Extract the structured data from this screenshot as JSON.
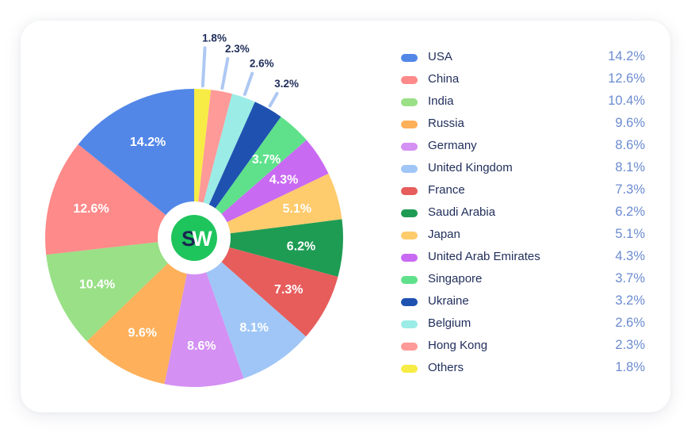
{
  "chart_data": {
    "type": "pie",
    "title": "",
    "start_angle_deg": -90,
    "direction": "clockwise",
    "center_logo": {
      "left_letter": "S",
      "right_letter": "W",
      "circle_color": "#1ec45c",
      "left_color": "#1a2550",
      "right_color": "#ffffff"
    },
    "slices": [
      {
        "label": "Others",
        "value": 1.8,
        "display": "1.8%",
        "color": "#f7ec45",
        "label_position": "outside"
      },
      {
        "label": "Hong Kong",
        "value": 2.3,
        "display": "2.3%",
        "color": "#fe9a98",
        "label_position": "outside"
      },
      {
        "label": "Belgium",
        "value": 2.6,
        "display": "2.6%",
        "color": "#9bece6",
        "label_position": "outside"
      },
      {
        "label": "Ukraine",
        "value": 3.2,
        "display": "3.2%",
        "color": "#1f52b0",
        "label_position": "outside"
      },
      {
        "label": "Singapore",
        "value": 3.7,
        "display": "3.7%",
        "color": "#5fe18b",
        "label_position": "inside"
      },
      {
        "label": "United Arab Emirates",
        "value": 4.3,
        "display": "4.3%",
        "color": "#c96af3",
        "label_position": "inside"
      },
      {
        "label": "Japan",
        "value": 5.1,
        "display": "5.1%",
        "color": "#fecb6d",
        "label_position": "inside"
      },
      {
        "label": "Saudi Arabia",
        "value": 6.2,
        "display": "6.2%",
        "color": "#1e9c54",
        "label_position": "inside"
      },
      {
        "label": "France",
        "value": 7.3,
        "display": "7.3%",
        "color": "#e65d5c",
        "label_position": "inside"
      },
      {
        "label": "United Kingdom",
        "value": 8.1,
        "display": "8.1%",
        "color": "#9fc6f6",
        "label_position": "inside"
      },
      {
        "label": "Germany",
        "value": 8.6,
        "display": "8.6%",
        "color": "#d490f3",
        "label_position": "inside"
      },
      {
        "label": "Russia",
        "value": 9.6,
        "display": "9.6%",
        "color": "#feb05a",
        "label_position": "inside"
      },
      {
        "label": "India",
        "value": 10.4,
        "display": "10.4%",
        "color": "#99e086",
        "label_position": "inside"
      },
      {
        "label": "China",
        "value": 12.6,
        "display": "12.6%",
        "color": "#fe8a89",
        "label_position": "inside"
      },
      {
        "label": "USA",
        "value": 14.2,
        "display": "14.2%",
        "color": "#5287e8",
        "label_position": "inside"
      }
    ],
    "legend_position": "right"
  },
  "legend": [
    {
      "name": "USA",
      "value": "14.2%",
      "color": "#5287e8"
    },
    {
      "name": "China",
      "value": "12.6%",
      "color": "#fe8a89"
    },
    {
      "name": "India",
      "value": "10.4%",
      "color": "#99e086"
    },
    {
      "name": "Russia",
      "value": "9.6%",
      "color": "#feb05a"
    },
    {
      "name": "Germany",
      "value": "8.6%",
      "color": "#d490f3"
    },
    {
      "name": "United Kingdom",
      "value": "8.1%",
      "color": "#9fc6f6"
    },
    {
      "name": "France",
      "value": "7.3%",
      "color": "#e65d5c"
    },
    {
      "name": "Saudi Arabia",
      "value": "6.2%",
      "color": "#1e9c54"
    },
    {
      "name": "Japan",
      "value": "5.1%",
      "color": "#fecb6d"
    },
    {
      "name": "United Arab Emirates",
      "value": "4.3%",
      "color": "#c96af3"
    },
    {
      "name": "Singapore",
      "value": "3.7%",
      "color": "#5fe18b"
    },
    {
      "name": "Ukraine",
      "value": "3.2%",
      "color": "#1f52b0"
    },
    {
      "name": "Belgium",
      "value": "2.6%",
      "color": "#9bece6"
    },
    {
      "name": "Hong Kong",
      "value": "2.3%",
      "color": "#fe9a98"
    },
    {
      "name": "Others",
      "value": "1.8%",
      "color": "#f7ec45"
    }
  ]
}
